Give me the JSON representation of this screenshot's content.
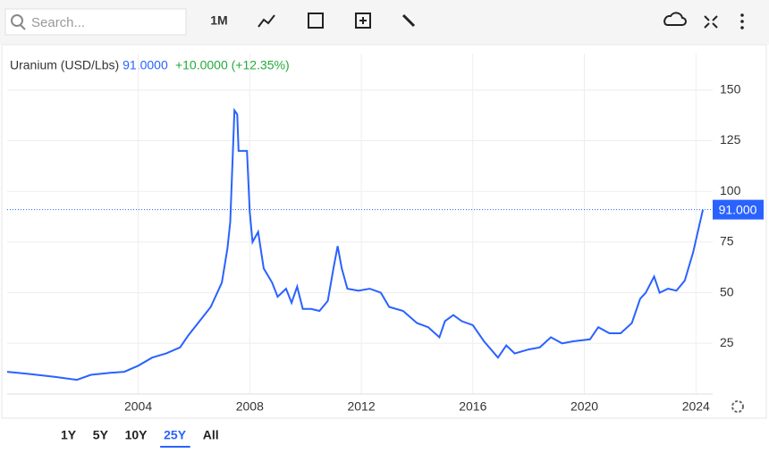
{
  "toolbar": {
    "search": "Search...",
    "interval": "1M"
  },
  "header": {
    "price": "91.0000",
    "change": "+10.0000 (+12.35%)"
  },
  "ranges": {
    "labels": [
      "1Y",
      "5Y",
      "10Y",
      "25Y",
      "All"
    ],
    "active": 3
  },
  "chart_data": {
    "type": "line",
    "x": [
      1999.3,
      2000,
      2001,
      2001.8,
      2002.3,
      2003,
      2003.5,
      2004,
      2004.5,
      2005,
      2005.5,
      2005.8,
      2006.2,
      2006.6,
      2007.0,
      2007.2,
      2007.3,
      2007.45,
      2007.55,
      2007.6,
      2007.9,
      2008.0,
      2008.1,
      2008.3,
      2008.5,
      2008.8,
      2009.0,
      2009.3,
      2009.5,
      2009.7,
      2009.9,
      2010.2,
      2010.5,
      2010.8,
      2011.0,
      2011.15,
      2011.3,
      2011.5,
      2011.9,
      2012.3,
      2012.7,
      2013.0,
      2013.5,
      2014.0,
      2014.4,
      2014.8,
      2015.0,
      2015.3,
      2015.6,
      2016.0,
      2016.4,
      2016.9,
      2017.2,
      2017.5,
      2018.0,
      2018.4,
      2018.8,
      2019.2,
      2019.6,
      2020.2,
      2020.5,
      2020.9,
      2021.3,
      2021.7,
      2022.0,
      2022.2,
      2022.5,
      2022.7,
      2023.0,
      2023.3,
      2023.6,
      2023.9,
      2024.1,
      2024.25
    ],
    "series": [
      {
        "name": "Uranium (USD/Lbs)",
        "color": "#2962ff",
        "values": [
          11,
          10,
          8.5,
          7,
          9.5,
          10.5,
          11,
          14,
          18,
          20,
          23,
          29,
          36,
          43,
          55,
          72,
          85,
          140,
          138,
          120,
          120,
          90,
          75,
          80,
          62,
          55,
          48,
          52,
          45,
          53,
          42,
          42,
          41,
          46,
          62,
          73,
          62,
          52,
          51,
          52,
          50,
          43,
          41,
          35,
          33,
          28,
          36,
          39,
          36,
          34,
          26,
          18,
          24,
          20,
          22,
          23,
          28,
          25,
          26,
          27,
          33,
          30,
          30,
          35,
          47,
          50,
          58,
          50,
          52,
          51,
          56,
          70,
          82,
          91
        ]
      }
    ],
    "last_label": "91.000",
    "xlim": [
      1999.3,
      2024.6
    ],
    "xticks": [
      2004,
      2008,
      2012,
      2016,
      2020,
      2024
    ],
    "ylim": [
      0,
      168
    ],
    "yticks": [
      25,
      50,
      75,
      100,
      125,
      150
    ],
    "grid": true
  }
}
